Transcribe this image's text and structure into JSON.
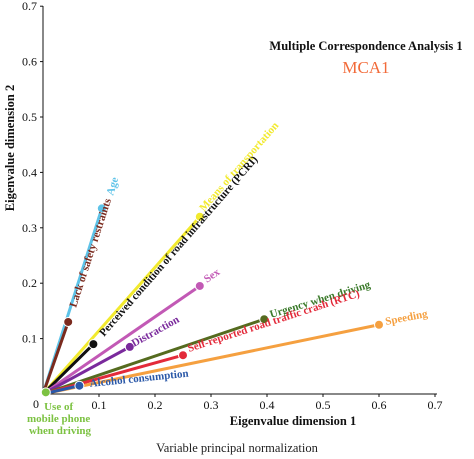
{
  "chart_data": {
    "type": "scatter",
    "title": "Multiple Correspondence Analysis 1",
    "subtitle": "MCA1",
    "xlabel": "Eigenvalue dimension 1",
    "ylabel": "Eigenvalue dimension 2",
    "caption": "Variable principal normalization",
    "xlim": [
      0,
      0.7
    ],
    "ylim": [
      0,
      0.7
    ],
    "x_ticks": [
      "0",
      "0.1",
      "0.2",
      "0.3",
      "0.4",
      "0.5",
      "0.6",
      "0.7"
    ],
    "y_ticks": [
      "0",
      "0.1",
      "0.2",
      "0.3",
      "0.4",
      "0.5",
      "0.6",
      "0.7"
    ],
    "grid": false,
    "vectors": [
      {
        "name": "Age",
        "x": 0.105,
        "y": 0.335,
        "color": "#5ec3e8"
      },
      {
        "name": "Lack of safety restraints",
        "x": 0.045,
        "y": 0.13,
        "color": "#7a2a1e"
      },
      {
        "name": "Means of transportation",
        "x": 0.28,
        "y": 0.32,
        "color": "#f2ea2e"
      },
      {
        "name": "Perceived condition of road infrastructure (PCRI)",
        "x": 0.09,
        "y": 0.09,
        "color": "#111111"
      },
      {
        "name": "Sex",
        "x": 0.28,
        "y": 0.195,
        "color": "#c259b5"
      },
      {
        "name": "Distraction",
        "x": 0.155,
        "y": 0.085,
        "color": "#7a2a9c"
      },
      {
        "name": "Urgency when driving",
        "x": 0.395,
        "y": 0.135,
        "color": "#556b1f"
      },
      {
        "name": "Self-reported road traffic crash (RTC)",
        "x": 0.25,
        "y": 0.07,
        "color": "#e32a3a"
      },
      {
        "name": "Speeding",
        "x": 0.6,
        "y": 0.125,
        "color": "#f5a040"
      },
      {
        "name": "Alcohol consumption",
        "x": 0.065,
        "y": 0.015,
        "color": "#2a58a8"
      },
      {
        "name": "Use of mobile phone when driving",
        "x": 0.005,
        "y": 0.003,
        "color": "#7cc242"
      }
    ]
  }
}
